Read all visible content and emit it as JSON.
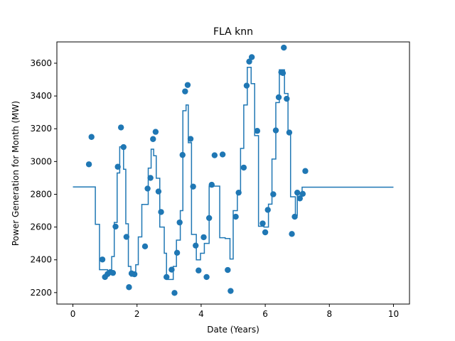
{
  "chart_data": {
    "type": "scatter",
    "title": "FLA knn",
    "xlabel": "Date (Years)",
    "ylabel": "Power Generation for Month (MW)",
    "xlim": [
      -0.5,
      10.5
    ],
    "ylim": [
      2130,
      3730
    ],
    "xticks": [
      0,
      2,
      4,
      6,
      8,
      10
    ],
    "xtick_labels": [
      "0",
      "2",
      "4",
      "6",
      "8",
      "10"
    ],
    "yticks": [
      2200,
      2400,
      2600,
      2800,
      3000,
      3200,
      3400,
      3600
    ],
    "ytick_labels": [
      "2200",
      "2400",
      "2600",
      "2800",
      "3000",
      "3200",
      "3400",
      "3600"
    ],
    "grid": false,
    "colors": {
      "series": "#1f77b4",
      "axes": "#000000",
      "background": "#ffffff"
    },
    "series": [
      {
        "kind": "scatter",
        "points": [
          [
            0.5,
            2983
          ],
          [
            0.58,
            3150
          ],
          [
            0.92,
            2402
          ],
          [
            1.0,
            2295
          ],
          [
            1.08,
            2313
          ],
          [
            1.17,
            2325
          ],
          [
            1.25,
            2320
          ],
          [
            1.33,
            2603
          ],
          [
            1.4,
            2968
          ],
          [
            1.5,
            3208
          ],
          [
            1.58,
            3088
          ],
          [
            1.67,
            2540
          ],
          [
            1.75,
            2233
          ],
          [
            1.83,
            2317
          ],
          [
            1.92,
            2312
          ],
          [
            2.25,
            2482
          ],
          [
            2.33,
            2835
          ],
          [
            2.42,
            2900
          ],
          [
            2.5,
            3137
          ],
          [
            2.58,
            3181
          ],
          [
            2.67,
            2817
          ],
          [
            2.75,
            2692
          ],
          [
            2.92,
            2295
          ],
          [
            3.08,
            2340
          ],
          [
            3.17,
            2198
          ],
          [
            3.25,
            2443
          ],
          [
            3.33,
            2628
          ],
          [
            3.42,
            3040
          ],
          [
            3.5,
            3428
          ],
          [
            3.58,
            3467
          ],
          [
            3.67,
            3138
          ],
          [
            3.75,
            2847
          ],
          [
            3.83,
            2487
          ],
          [
            3.92,
            2335
          ],
          [
            4.08,
            2538
          ],
          [
            4.17,
            2295
          ],
          [
            4.25,
            2655
          ],
          [
            4.33,
            2858
          ],
          [
            4.42,
            3038
          ],
          [
            4.67,
            3043
          ],
          [
            4.83,
            2338
          ],
          [
            4.92,
            2210
          ],
          [
            5.08,
            2663
          ],
          [
            5.17,
            2810
          ],
          [
            5.33,
            2963
          ],
          [
            5.42,
            3463
          ],
          [
            5.5,
            3610
          ],
          [
            5.58,
            3637
          ],
          [
            5.75,
            3187
          ],
          [
            5.92,
            2622
          ],
          [
            6.0,
            2568
          ],
          [
            6.08,
            2705
          ],
          [
            6.25,
            2800
          ],
          [
            6.33,
            3190
          ],
          [
            6.42,
            3392
          ],
          [
            6.5,
            3545
          ],
          [
            6.55,
            3540
          ],
          [
            6.58,
            3695
          ],
          [
            6.67,
            3383
          ],
          [
            6.75,
            3177
          ],
          [
            6.83,
            2558
          ],
          [
            6.92,
            2663
          ],
          [
            7.0,
            2810
          ],
          [
            7.08,
            2775
          ],
          [
            7.17,
            2803
          ],
          [
            7.25,
            2942
          ]
        ]
      },
      {
        "kind": "step",
        "points": [
          [
            0.0,
            2845
          ],
          [
            0.7,
            2845
          ],
          [
            0.7,
            2617
          ],
          [
            0.83,
            2617
          ],
          [
            0.83,
            2340
          ],
          [
            1.08,
            2340
          ],
          [
            1.08,
            2330
          ],
          [
            1.21,
            2330
          ],
          [
            1.21,
            2420
          ],
          [
            1.29,
            2420
          ],
          [
            1.29,
            2628
          ],
          [
            1.38,
            2628
          ],
          [
            1.38,
            2930
          ],
          [
            1.46,
            2930
          ],
          [
            1.46,
            3090
          ],
          [
            1.58,
            3090
          ],
          [
            1.58,
            2953
          ],
          [
            1.65,
            2953
          ],
          [
            1.65,
            2620
          ],
          [
            1.73,
            2620
          ],
          [
            1.73,
            2360
          ],
          [
            1.81,
            2360
          ],
          [
            1.81,
            2300
          ],
          [
            1.96,
            2300
          ],
          [
            1.96,
            2370
          ],
          [
            2.04,
            2370
          ],
          [
            2.04,
            2540
          ],
          [
            2.15,
            2540
          ],
          [
            2.15,
            2738
          ],
          [
            2.35,
            2738
          ],
          [
            2.35,
            2960
          ],
          [
            2.44,
            2960
          ],
          [
            2.44,
            3075
          ],
          [
            2.52,
            3075
          ],
          [
            2.52,
            3035
          ],
          [
            2.6,
            3035
          ],
          [
            2.6,
            2898
          ],
          [
            2.71,
            2898
          ],
          [
            2.71,
            2600
          ],
          [
            2.85,
            2600
          ],
          [
            2.85,
            2440
          ],
          [
            2.92,
            2440
          ],
          [
            2.92,
            2280
          ],
          [
            3.13,
            2280
          ],
          [
            3.13,
            2360
          ],
          [
            3.23,
            2360
          ],
          [
            3.23,
            2520
          ],
          [
            3.35,
            2520
          ],
          [
            3.35,
            2700
          ],
          [
            3.43,
            2700
          ],
          [
            3.43,
            3310
          ],
          [
            3.53,
            3310
          ],
          [
            3.53,
            3345
          ],
          [
            3.6,
            3345
          ],
          [
            3.6,
            3115
          ],
          [
            3.7,
            3115
          ],
          [
            3.7,
            2555
          ],
          [
            3.85,
            2555
          ],
          [
            3.85,
            2400
          ],
          [
            3.98,
            2400
          ],
          [
            3.98,
            2440
          ],
          [
            4.1,
            2440
          ],
          [
            4.1,
            2500
          ],
          [
            4.25,
            2500
          ],
          [
            4.25,
            2850
          ],
          [
            4.58,
            2850
          ],
          [
            4.58,
            2535
          ],
          [
            4.75,
            2535
          ],
          [
            4.75,
            2530
          ],
          [
            4.9,
            2530
          ],
          [
            4.9,
            2405
          ],
          [
            5.0,
            2405
          ],
          [
            5.0,
            2700
          ],
          [
            5.13,
            2700
          ],
          [
            5.13,
            2820
          ],
          [
            5.23,
            2820
          ],
          [
            5.23,
            3080
          ],
          [
            5.33,
            3080
          ],
          [
            5.33,
            3345
          ],
          [
            5.44,
            3345
          ],
          [
            5.44,
            3575
          ],
          [
            5.56,
            3575
          ],
          [
            5.56,
            3475
          ],
          [
            5.67,
            3475
          ],
          [
            5.67,
            3158
          ],
          [
            5.79,
            3158
          ],
          [
            5.79,
            2605
          ],
          [
            5.96,
            2605
          ],
          [
            5.96,
            2600
          ],
          [
            6.1,
            2600
          ],
          [
            6.1,
            2740
          ],
          [
            6.21,
            2740
          ],
          [
            6.21,
            3015
          ],
          [
            6.33,
            3015
          ],
          [
            6.33,
            3360
          ],
          [
            6.44,
            3360
          ],
          [
            6.44,
            3560
          ],
          [
            6.6,
            3560
          ],
          [
            6.6,
            3415
          ],
          [
            6.71,
            3415
          ],
          [
            6.71,
            3178
          ],
          [
            6.79,
            3178
          ],
          [
            6.79,
            2785
          ],
          [
            6.94,
            2785
          ],
          [
            6.94,
            2672
          ],
          [
            7.0,
            2672
          ],
          [
            7.0,
            2805
          ],
          [
            7.08,
            2805
          ],
          [
            7.08,
            2800
          ],
          [
            7.15,
            2800
          ],
          [
            7.15,
            2843
          ],
          [
            10.0,
            2843
          ]
        ]
      }
    ]
  }
}
